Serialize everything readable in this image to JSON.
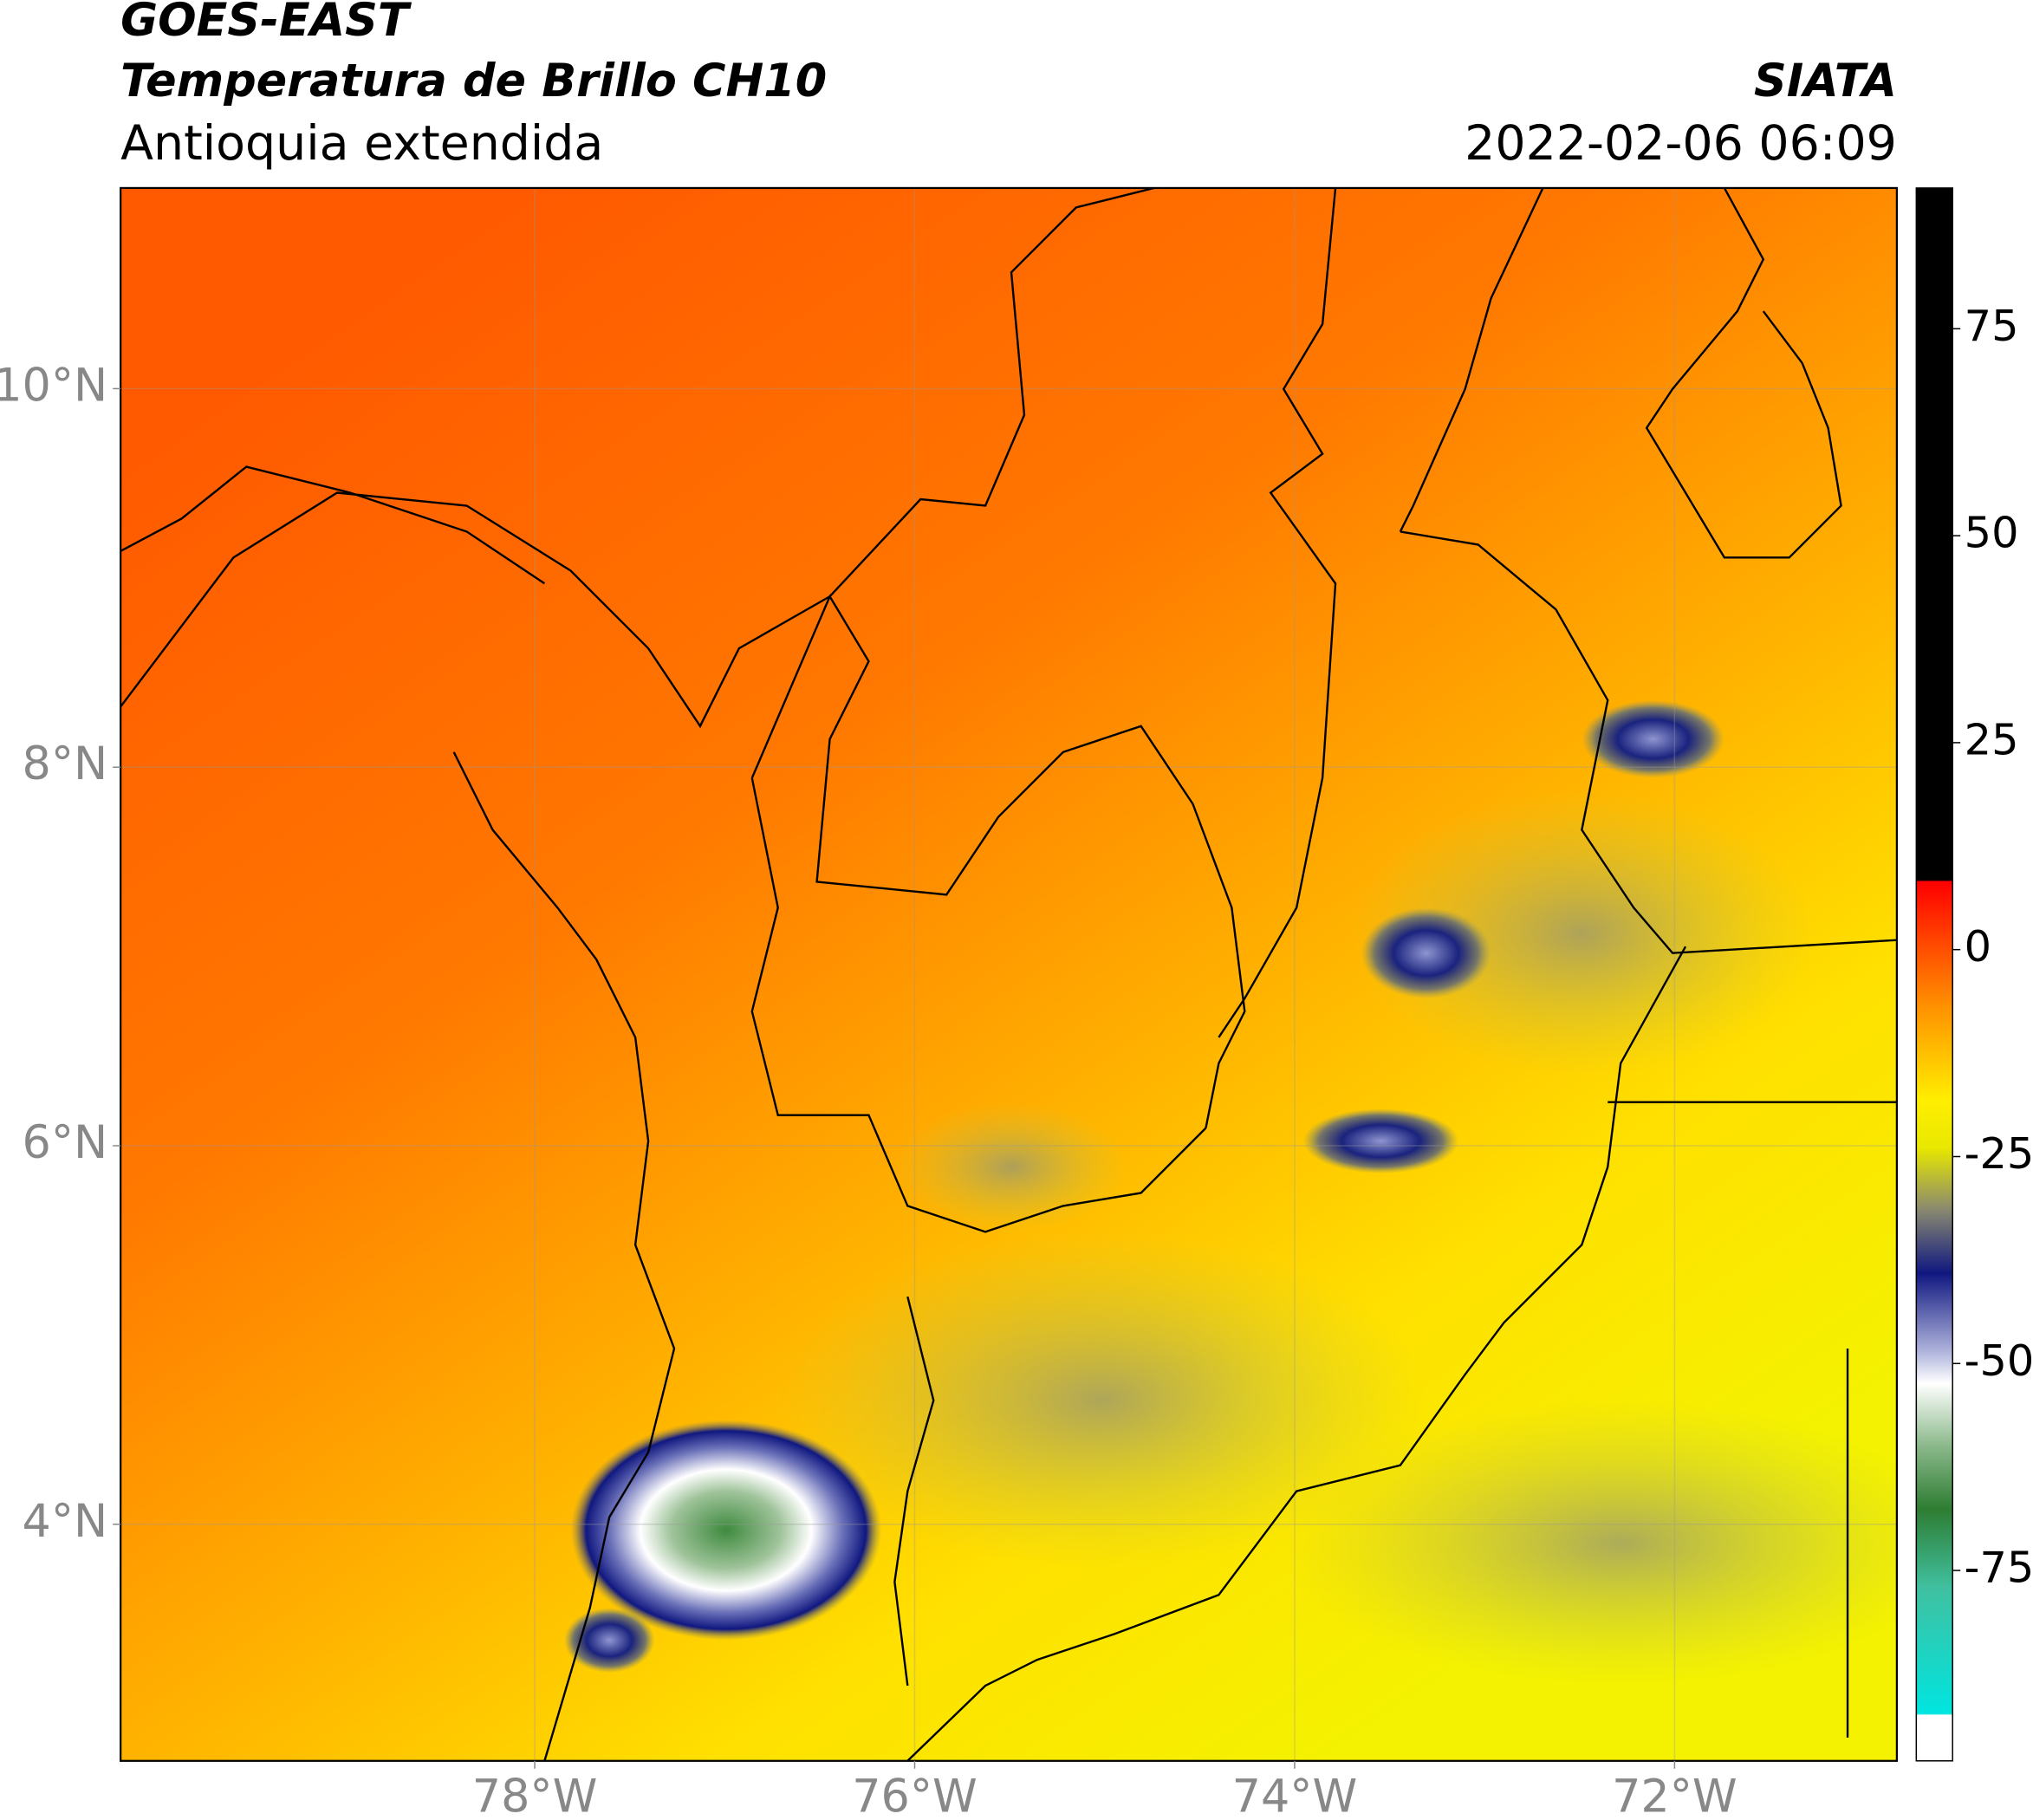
{
  "chart_data": {
    "type": "map",
    "title": "GOES-EAST",
    "subtitle": "Temperatura de Brillo CH10",
    "region": "Antioquia extendida",
    "source": "SIATA",
    "datetime": "2022-02-06 06:09",
    "xlim": [
      -80.18,
      -70.83
    ],
    "ylim": [
      2.75,
      11.06
    ],
    "xticks": [
      {
        "value": -78,
        "label": "78°W"
      },
      {
        "value": -76,
        "label": "76°W"
      },
      {
        "value": -74,
        "label": "74°W"
      },
      {
        "value": -72,
        "label": "72°W"
      }
    ],
    "yticks": [
      {
        "value": 4,
        "label": "4°N"
      },
      {
        "value": 6,
        "label": "6°N"
      },
      {
        "value": 8,
        "label": "8°N"
      },
      {
        "value": 10,
        "label": "10°N"
      }
    ],
    "grid": true,
    "colorbar": {
      "clim": [
        -98,
        92
      ],
      "ticks": [
        75,
        50,
        25,
        0,
        -25,
        -50,
        -75
      ]
    }
  }
}
